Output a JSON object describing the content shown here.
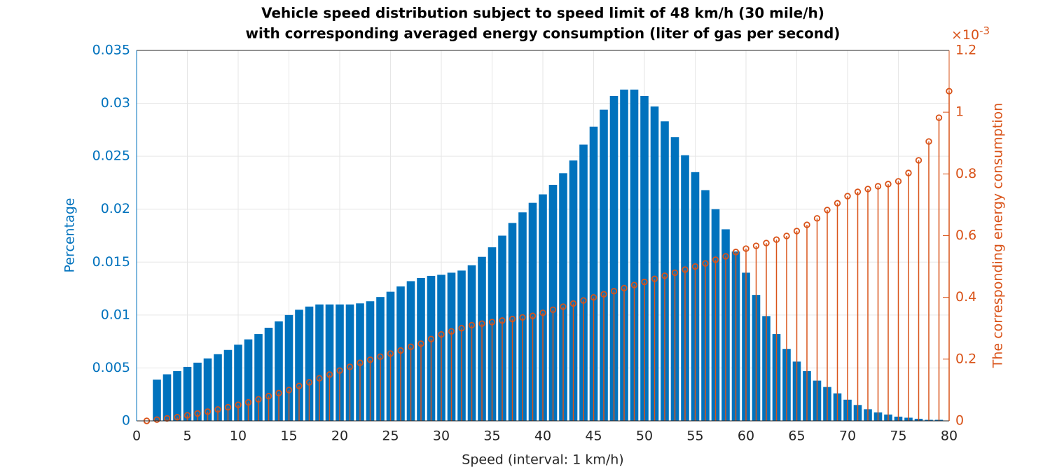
{
  "chart_data": {
    "type": "bar",
    "title": [
      "Vehicle speed distribution subject to speed limit of 48  km/h (30 mile/h)",
      "with corresponding averaged energy consumption (liter of gas per second)"
    ],
    "xlabel": "Speed (interval: 1 km/h)",
    "ylabel": "Percentage",
    "y2label": "The corresponding energy consumption",
    "y2_scale": {
      "base": "×10",
      "exponent": "-3"
    },
    "xlim": [
      0,
      80
    ],
    "xticks": [
      0,
      5,
      10,
      15,
      20,
      25,
      30,
      35,
      40,
      45,
      50,
      55,
      60,
      65,
      70,
      75,
      80
    ],
    "ylim": [
      0,
      0.035
    ],
    "yticks": [
      0,
      0.005,
      0.01,
      0.015,
      0.02,
      0.025,
      0.03,
      0.035
    ],
    "y2lim": [
      0,
      1.2
    ],
    "y2ticks": [
      0,
      0.2,
      0.4,
      0.6,
      0.8,
      1,
      1.2
    ],
    "grid": true,
    "series": [
      {
        "type": "bar",
        "color": "#0072bd",
        "x": [
          2,
          3,
          4,
          5,
          6,
          7,
          8,
          9,
          10,
          11,
          12,
          13,
          14,
          15,
          16,
          17,
          18,
          19,
          20,
          21,
          22,
          23,
          24,
          25,
          26,
          27,
          28,
          29,
          30,
          31,
          32,
          33,
          34,
          35,
          36,
          37,
          38,
          39,
          40,
          41,
          42,
          43,
          44,
          45,
          46,
          47,
          48,
          49,
          50,
          51,
          52,
          53,
          54,
          55,
          56,
          57,
          58,
          59,
          60,
          61,
          62,
          63,
          64,
          65,
          66,
          67,
          68,
          69,
          70,
          71,
          72,
          73,
          74,
          75,
          76,
          77,
          78,
          79
        ],
        "values": [
          0.0039,
          0.0044,
          0.0047,
          0.0051,
          0.0055,
          0.0059,
          0.0063,
          0.0067,
          0.0072,
          0.0077,
          0.0082,
          0.0088,
          0.0094,
          0.01,
          0.0105,
          0.0108,
          0.011,
          0.011,
          0.011,
          0.011,
          0.0111,
          0.0113,
          0.0117,
          0.0122,
          0.0127,
          0.0132,
          0.0135,
          0.0137,
          0.0138,
          0.014,
          0.0142,
          0.0147,
          0.0155,
          0.0164,
          0.0175,
          0.0187,
          0.0197,
          0.0206,
          0.0214,
          0.0223,
          0.0234,
          0.0246,
          0.0261,
          0.0278,
          0.0294,
          0.0307,
          0.0313,
          0.0313,
          0.0307,
          0.0297,
          0.0283,
          0.0268,
          0.0251,
          0.0235,
          0.0218,
          0.02,
          0.0181,
          0.016,
          0.014,
          0.0119,
          0.0099,
          0.0082,
          0.0068,
          0.0056,
          0.0047,
          0.0038,
          0.0032,
          0.0026,
          0.002,
          0.0015,
          0.0011,
          0.0008,
          0.0006,
          0.0004,
          0.0003,
          0.0002,
          0.0001,
          0.0001
        ]
      },
      {
        "type": "stem",
        "axis": "y2",
        "color": "#d95319",
        "x": [
          1,
          2,
          3,
          4,
          5,
          6,
          7,
          8,
          9,
          10,
          11,
          12,
          13,
          14,
          15,
          16,
          17,
          18,
          19,
          20,
          21,
          22,
          23,
          24,
          25,
          26,
          27,
          28,
          29,
          30,
          31,
          32,
          33,
          34,
          35,
          36,
          37,
          38,
          39,
          40,
          41,
          42,
          43,
          44,
          45,
          46,
          47,
          48,
          49,
          50,
          51,
          52,
          53,
          54,
          55,
          56,
          57,
          58,
          59,
          60,
          61,
          62,
          63,
          64,
          65,
          66,
          67,
          68,
          69,
          70,
          71,
          72,
          73,
          74,
          75,
          76,
          77,
          78,
          79,
          80
        ],
        "values": [
          0,
          0.004,
          0.008,
          0.012,
          0.018,
          0.024,
          0.03,
          0.037,
          0.044,
          0.052,
          0.06,
          0.07,
          0.08,
          0.09,
          0.1,
          0.113,
          0.125,
          0.138,
          0.15,
          0.163,
          0.175,
          0.188,
          0.198,
          0.208,
          0.218,
          0.228,
          0.24,
          0.25,
          0.265,
          0.28,
          0.29,
          0.3,
          0.31,
          0.315,
          0.32,
          0.325,
          0.33,
          0.335,
          0.34,
          0.35,
          0.36,
          0.37,
          0.38,
          0.39,
          0.4,
          0.41,
          0.42,
          0.43,
          0.44,
          0.45,
          0.46,
          0.47,
          0.48,
          0.49,
          0.5,
          0.51,
          0.522,
          0.533,
          0.547,
          0.558,
          0.567,
          0.576,
          0.587,
          0.599,
          0.615,
          0.635,
          0.656,
          0.683,
          0.705,
          0.728,
          0.742,
          0.751,
          0.76,
          0.767,
          0.776,
          0.803,
          0.844,
          0.905,
          0.982,
          1.068
        ]
      }
    ]
  }
}
